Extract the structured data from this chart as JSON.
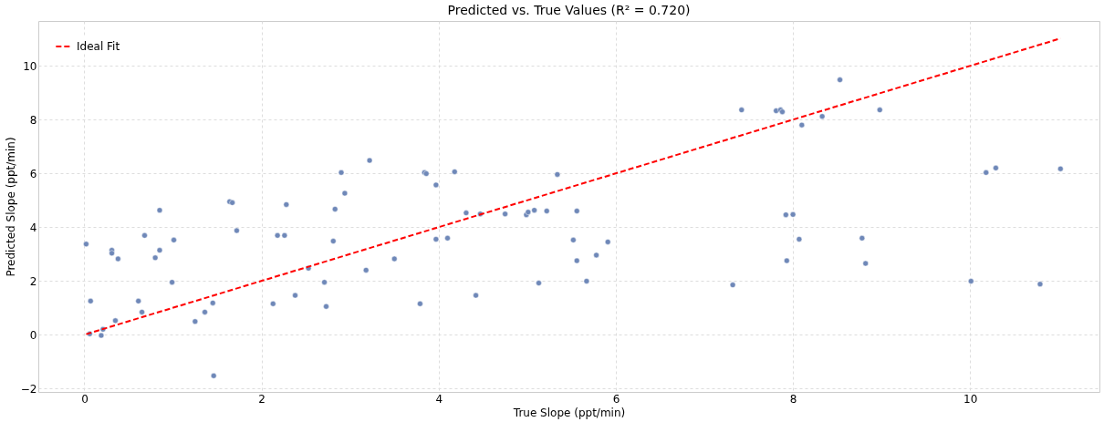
{
  "chart_data": {
    "type": "scatter",
    "title": "Predicted vs. True Values (R² = 0.720)",
    "xlabel": "True Slope (ppt/min)",
    "ylabel": "Predicted Slope (ppt/min)",
    "xlim": [
      -0.52,
      11.46
    ],
    "ylim": [
      -2.13,
      11.67
    ],
    "xticks": [
      0,
      2,
      4,
      6,
      8,
      10
    ],
    "yticks": [
      -2,
      0,
      2,
      4,
      6,
      8,
      10
    ],
    "grid": true,
    "legend": "top left",
    "marker": "circle",
    "series": [
      {
        "color": "#6f88b8",
        "x": [
          0.02,
          0.07,
          0.06,
          0.21,
          0.19,
          0.31,
          0.31,
          0.35,
          0.38,
          0.61,
          0.65,
          0.68,
          0.8,
          0.85,
          0.85,
          0.99,
          1.01,
          1.25,
          1.36,
          1.45,
          1.46,
          1.64,
          1.67,
          1.72,
          2.13,
          2.18,
          2.26,
          2.28,
          2.38,
          2.53,
          2.71,
          2.73,
          2.81,
          2.83,
          2.9,
          2.94,
          3.18,
          3.22,
          3.5,
          3.79,
          3.84,
          3.86,
          3.97,
          3.97,
          4.1,
          4.18,
          4.31,
          4.42,
          4.47,
          4.75,
          4.99,
          5.01,
          5.08,
          5.13,
          5.22,
          5.34,
          5.52,
          5.56,
          5.56,
          5.67,
          5.78,
          5.91,
          7.32,
          7.42,
          7.81,
          7.86,
          7.88,
          8.1,
          8.33,
          8.53,
          8.98,
          7.92,
          8.0,
          8.07,
          7.93,
          8.78,
          8.82,
          10.01,
          10.18,
          10.29,
          10.79,
          11.02
        ],
        "values": [
          3.37,
          1.25,
          0.03,
          0.2,
          -0.03,
          3.14,
          3.03,
          0.52,
          2.82,
          1.25,
          0.84,
          3.69,
          2.86,
          4.63,
          3.14,
          1.95,
          3.52,
          0.49,
          0.84,
          1.18,
          -1.53,
          4.95,
          4.91,
          3.87,
          1.15,
          3.69,
          3.69,
          4.84,
          1.46,
          2.47,
          1.95,
          1.05,
          3.48,
          4.67,
          6.03,
          5.26,
          2.4,
          6.48,
          2.82,
          1.15,
          6.03,
          5.99,
          5.57,
          3.55,
          3.59,
          6.06,
          4.53,
          1.46,
          4.49,
          4.49,
          4.46,
          4.56,
          4.63,
          1.92,
          4.6,
          5.96,
          3.52,
          4.6,
          2.75,
          1.99,
          2.96,
          3.45,
          1.85,
          8.36,
          8.33,
          8.36,
          8.29,
          7.8,
          8.12,
          9.48,
          8.36,
          4.46,
          4.47,
          3.55,
          2.75,
          3.59,
          2.65,
          1.99,
          6.03,
          6.2,
          1.88,
          6.17
        ]
      },
      {
        "type": "line",
        "name": "Ideal Fit",
        "color": "#ff0000",
        "line_style": "dashed",
        "marker": "none",
        "x": [
          0.02,
          11.02
        ],
        "values": [
          0.02,
          11.02
        ]
      }
    ]
  }
}
